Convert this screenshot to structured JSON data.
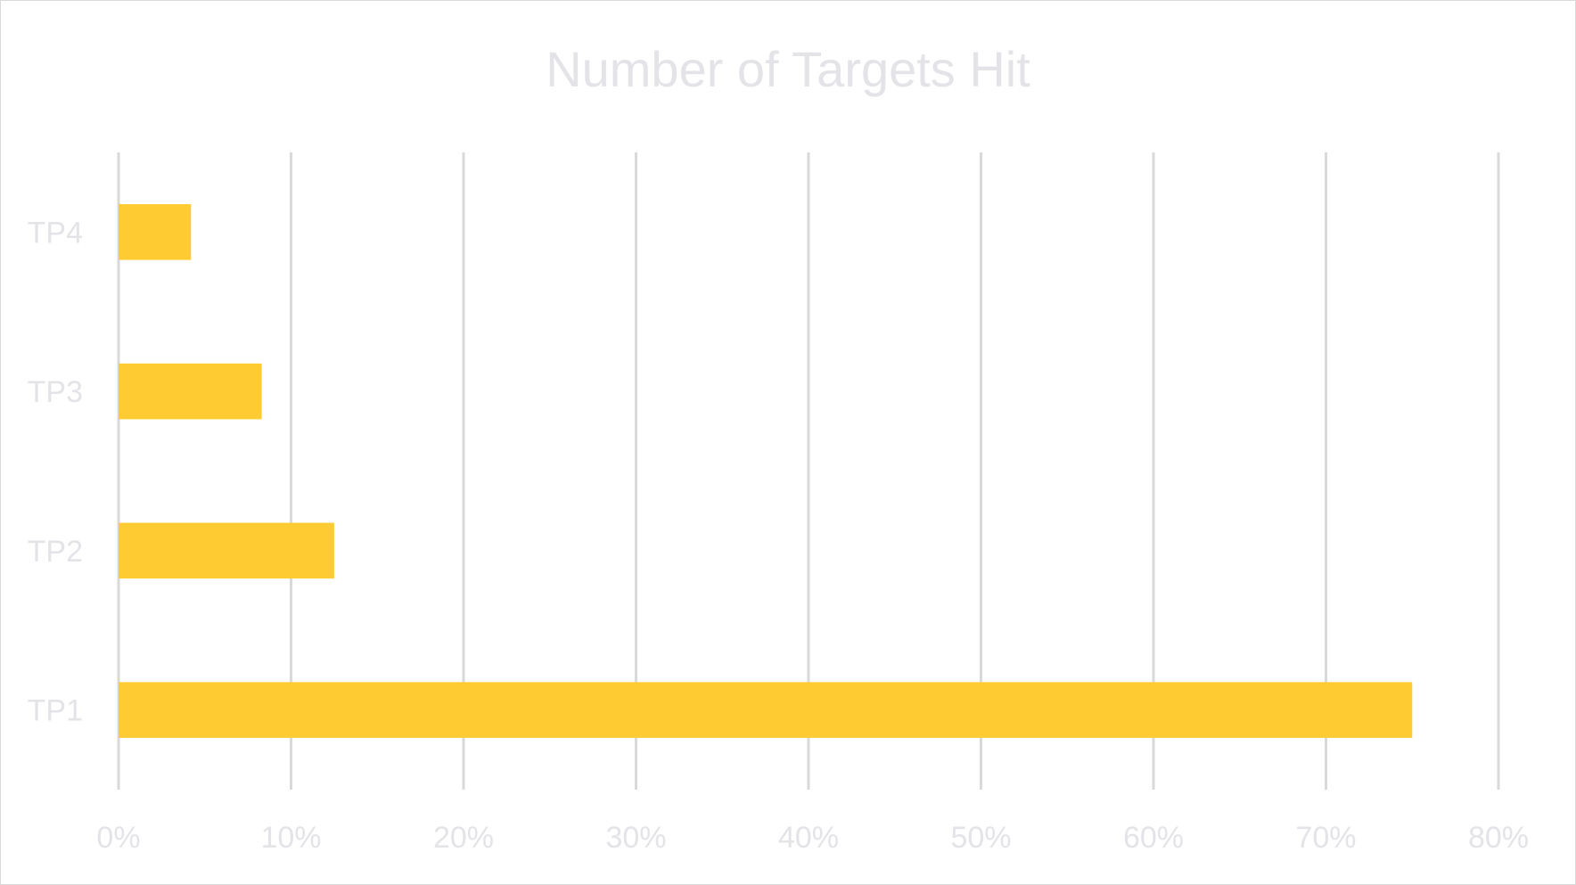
{
  "chart_data": {
    "type": "bar",
    "orientation": "horizontal",
    "title": "Number of Targets Hit",
    "categories": [
      "TP1",
      "TP2",
      "TP3",
      "TP4"
    ],
    "values": [
      75,
      12.5,
      8.3,
      4.2
    ],
    "value_unit": "%",
    "xlim": [
      0,
      80
    ],
    "x_ticks": [
      "0%",
      "10%",
      "20%",
      "30%",
      "40%",
      "50%",
      "60%",
      "70%",
      "80%"
    ],
    "grid": "vertical",
    "legend": "none",
    "bar_color": "#FFCB33",
    "grid_color": "#d9d9d9",
    "text_color": "#e4e4e8"
  }
}
